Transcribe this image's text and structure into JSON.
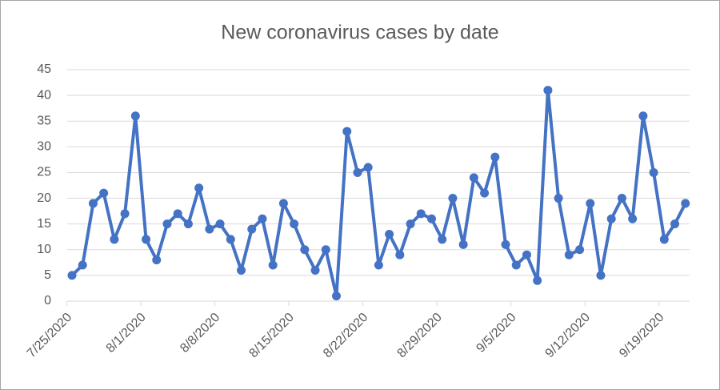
{
  "chart_data": {
    "type": "line",
    "title": "New coronavirus cases by date",
    "x": [
      "7/25/2020",
      "7/26/2020",
      "7/27/2020",
      "7/28/2020",
      "7/29/2020",
      "7/30/2020",
      "7/31/2020",
      "8/1/2020",
      "8/2/2020",
      "8/3/2020",
      "8/4/2020",
      "8/5/2020",
      "8/6/2020",
      "8/7/2020",
      "8/8/2020",
      "8/9/2020",
      "8/10/2020",
      "8/11/2020",
      "8/12/2020",
      "8/13/2020",
      "8/14/2020",
      "8/15/2020",
      "8/16/2020",
      "8/17/2020",
      "8/18/2020",
      "8/19/2020",
      "8/20/2020",
      "8/21/2020",
      "8/22/2020",
      "8/23/2020",
      "8/24/2020",
      "8/25/2020",
      "8/26/2020",
      "8/27/2020",
      "8/28/2020",
      "8/29/2020",
      "8/30/2020",
      "8/31/2020",
      "9/1/2020",
      "9/2/2020",
      "9/3/2020",
      "9/4/2020",
      "9/5/2020",
      "9/6/2020",
      "9/7/2020",
      "9/8/2020",
      "9/9/2020",
      "9/10/2020",
      "9/11/2020",
      "9/12/2020",
      "9/13/2020",
      "9/14/2020",
      "9/15/2020",
      "9/16/2020",
      "9/17/2020",
      "9/18/2020",
      "9/19/2020",
      "9/20/2020",
      "9/21/2020"
    ],
    "series": [
      {
        "name": "Cases",
        "color": "#4472c4",
        "values": [
          5,
          7,
          19,
          21,
          12,
          17,
          36,
          12,
          8,
          15,
          17,
          15,
          22,
          14,
          15,
          12,
          6,
          14,
          16,
          7,
          19,
          15,
          10,
          6,
          10,
          1,
          33,
          25,
          26,
          7,
          13,
          9,
          15,
          17,
          16,
          12,
          20,
          11,
          24,
          21,
          28,
          11,
          7,
          9,
          4,
          41,
          20,
          9,
          10,
          19,
          5,
          16,
          20,
          16,
          36,
          25,
          12,
          15,
          19
        ]
      }
    ],
    "xticks": [
      "7/25/2020",
      "8/1/2020",
      "8/8/2020",
      "8/15/2020",
      "8/22/2020",
      "8/29/2020",
      "9/5/2020",
      "9/12/2020",
      "9/19/2020"
    ],
    "ylim": [
      0,
      45
    ],
    "yticks": [
      0,
      5,
      10,
      15,
      20,
      25,
      30,
      35,
      40,
      45
    ],
    "grid": true
  }
}
